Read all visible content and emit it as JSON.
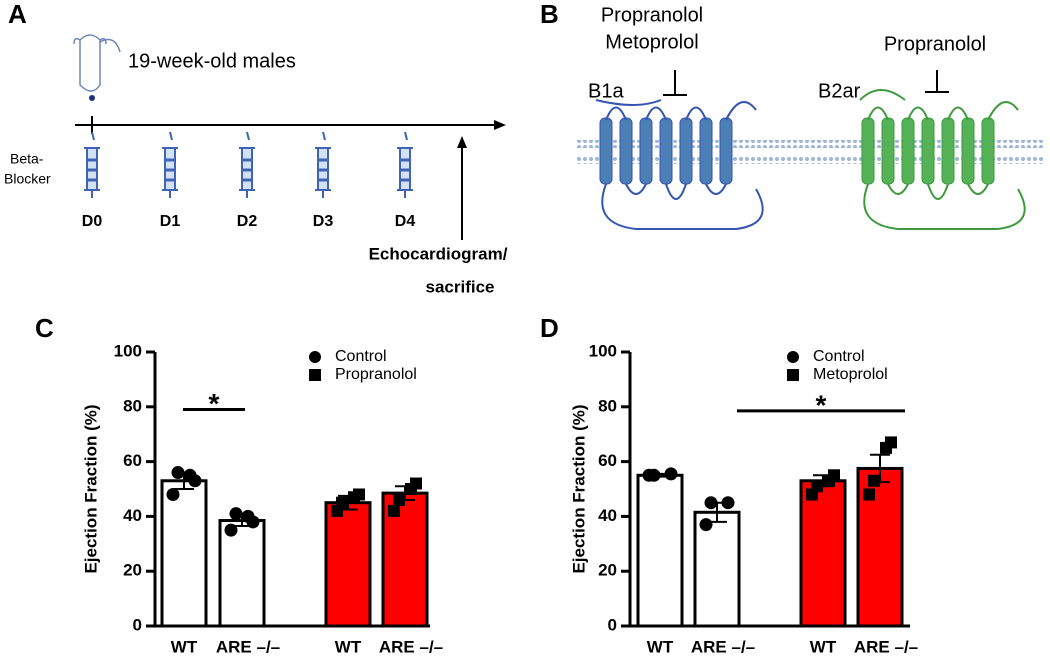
{
  "panel_a": {
    "label": "A",
    "subject": "19-week-old males",
    "treatment": [
      "Beta-",
      "Blocker"
    ],
    "days": [
      "D0",
      "D1",
      "D2",
      "D3",
      "D4"
    ],
    "endpoint": [
      "Echocardiogram/",
      "sacrifice"
    ]
  },
  "panel_b": {
    "label": "B",
    "receptors": [
      {
        "name": "B1a",
        "blockers": [
          "Propranolol",
          "Metoprolol"
        ]
      },
      {
        "name": "B2ar",
        "blockers": [
          "Propranolol"
        ]
      }
    ]
  },
  "chart_data": [
    {
      "type": "bar",
      "panel": "C",
      "y_label": "Ejection Fraction (%)",
      "ylim": [
        0,
        100
      ],
      "yticks": [
        0,
        20,
        40,
        60,
        80,
        100
      ],
      "categories": [
        "WT",
        "ARE –/–"
      ],
      "series": [
        {
          "name": "Control",
          "marker": "circle",
          "color": "#ffffff",
          "values": [
            53,
            38.5
          ],
          "errors": [
            3,
            2
          ],
          "points": [
            [
              48,
              53,
              56,
              55
            ],
            [
              35,
              38,
              41,
              40
            ]
          ]
        },
        {
          "name": "Propranolol",
          "marker": "square",
          "color": "#ff0000",
          "values": [
            45,
            48.5
          ],
          "errors": [
            2.5,
            2.5
          ],
          "points": [
            [
              42,
              48,
              45,
              47
            ],
            [
              42,
              52,
              46,
              50
            ]
          ]
        }
      ],
      "significance": {
        "label": "*",
        "y": 79
      }
    },
    {
      "type": "bar",
      "panel": "D",
      "y_label": "Ejection Fraction (%)",
      "ylim": [
        0,
        100
      ],
      "yticks": [
        0,
        20,
        40,
        60,
        80,
        100
      ],
      "categories": [
        "WT",
        "ARE –/–"
      ],
      "series": [
        {
          "name": "Control",
          "marker": "circle",
          "color": "#ffffff",
          "values": [
            55,
            41.5
          ],
          "errors": [
            0.5,
            3.5
          ],
          "points": [
            [
              55,
              55.5,
              55
            ],
            [
              37,
              45,
              45
            ]
          ]
        },
        {
          "name": "Metoprolol",
          "marker": "square",
          "color": "#ff0000",
          "values": [
            53,
            57.5
          ],
          "errors": [
            2,
            5
          ],
          "points": [
            [
              48,
              55,
              51,
              53
            ],
            [
              48,
              67,
              53,
              65
            ]
          ]
        }
      ],
      "significance": {
        "label": "*",
        "y": 78.5
      }
    }
  ]
}
